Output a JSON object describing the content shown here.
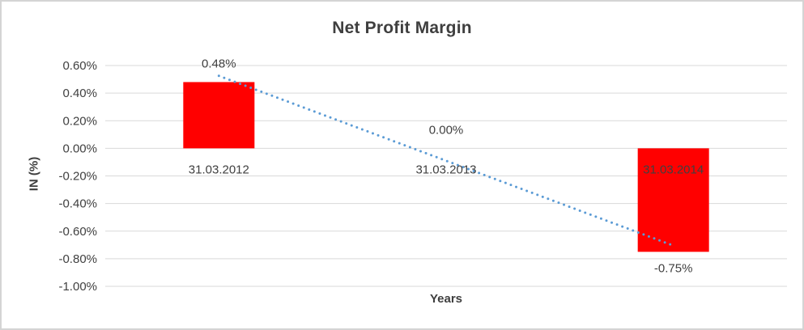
{
  "window": {
    "background": "#ffffff",
    "border_color": "#d4d4d4"
  },
  "chart_data": {
    "type": "bar",
    "title": "Net Profit Margin",
    "xlabel": "Years",
    "ylabel": "IN (%)",
    "categories": [
      "31.03.2012",
      "31.03.2013",
      "31.03.2014"
    ],
    "values": [
      0.48,
      0.0,
      -0.75
    ],
    "data_labels": [
      "0.48%",
      "0.00%",
      "-0.75%"
    ],
    "unit": "percent",
    "ylim": [
      -1.0,
      0.6
    ],
    "yticks": [
      {
        "value": 0.6,
        "label": "0.60%"
      },
      {
        "value": 0.4,
        "label": "0.40%"
      },
      {
        "value": 0.2,
        "label": "0.20%"
      },
      {
        "value": 0.0,
        "label": "0.00%"
      },
      {
        "value": -0.2,
        "label": "-0.20%"
      },
      {
        "value": -0.4,
        "label": "-0.40%"
      },
      {
        "value": -0.6,
        "label": "-0.60%"
      },
      {
        "value": -0.8,
        "label": "-0.80%"
      },
      {
        "value": -1.0,
        "label": "-1.00%"
      }
    ],
    "grid": true,
    "legend": "none",
    "bar_color": "#ff0000",
    "label_color": "#404040",
    "gridline_color": "#d9d9d9",
    "trendline": {
      "type": "linear",
      "style": "dotted",
      "color": "#5b9bd5",
      "start_value": 0.525,
      "end_value": -0.705
    }
  }
}
